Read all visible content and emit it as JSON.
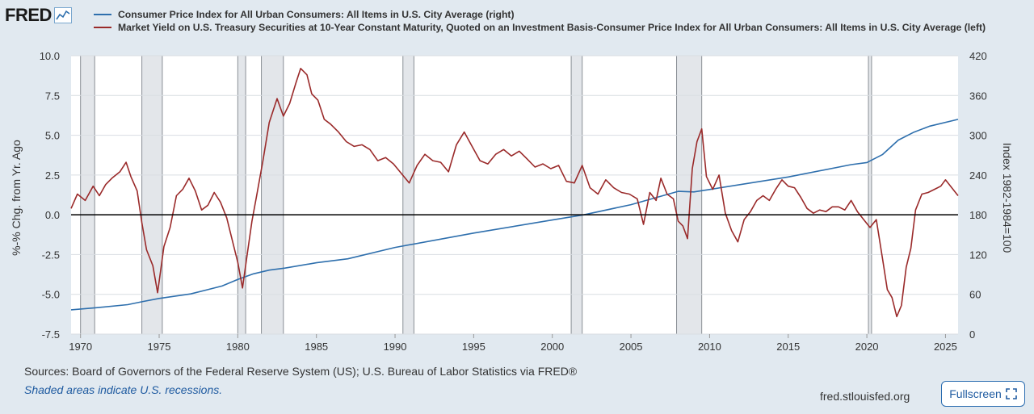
{
  "logo": {
    "text": "FRED",
    "icon": "chart-line-icon"
  },
  "legend": [
    {
      "label": "Consumer Price Index for All Urban Consumers: All Items in U.S. City Average (right)",
      "color": "#2e6fad"
    },
    {
      "label": "Market Yield on U.S. Treasury Securities at 10-Year Constant Maturity, Quoted on an Investment Basis-Consumer Price Index for All Urban Consumers: All Items in U.S. City Average (left)",
      "color": "#9a2a2a"
    }
  ],
  "footer": {
    "sources": "Sources: Board of Governors of the Federal Reserve System (US); U.S. Bureau of Labor Statistics via FRED®",
    "recession_note": "Shaded areas indicate U.S. recessions.",
    "site": "fred.stlouisfed.org",
    "fullscreen_label": "Fullscreen",
    "fullscreen_icon": "expand-icon"
  },
  "chart_data": {
    "type": "line",
    "ylabel_left": "%-% Chg. from Yr. Ago",
    "ylabel_right": "Index 1982-1984=100",
    "xlim": [
      1969.4,
      2025.8
    ],
    "ylim_left": [
      -7.5,
      10.0
    ],
    "ylim_right": [
      0,
      420
    ],
    "left_ticks": [
      "10.0",
      "7.5",
      "5.0",
      "2.5",
      "0.0",
      "-2.5",
      "-5.0",
      "-7.5"
    ],
    "right_ticks": [
      "420",
      "360",
      "300",
      "240",
      "180",
      "120",
      "60",
      "0"
    ],
    "x_ticks": [
      "1970",
      "1975",
      "1980",
      "1985",
      "1990",
      "1995",
      "2000",
      "2005",
      "2010",
      "2015",
      "2020",
      "2025"
    ],
    "grid": true,
    "zero_line": 0,
    "recessions": [
      [
        1970.0,
        1970.9
      ],
      [
        1973.9,
        1975.2
      ],
      [
        1980.0,
        1980.5
      ],
      [
        1981.5,
        1982.9
      ],
      [
        1990.5,
        1991.2
      ],
      [
        2001.2,
        2001.9
      ],
      [
        2007.9,
        2009.5
      ],
      [
        2020.1,
        2020.3
      ]
    ],
    "series": [
      {
        "name": "CPI (right)",
        "axis": "right",
        "color": "#2e6fad",
        "x": [
          1969.4,
          1971,
          1973,
          1974,
          1975,
          1977,
          1979,
          1980,
          1981,
          1982,
          1983,
          1985,
          1987,
          1990,
          1995,
          2000,
          2002,
          2005,
          2008,
          2009,
          2010,
          2015,
          2019,
          2020,
          2021,
          2022,
          2023,
          2024,
          2025.8
        ],
        "values": [
          36.7,
          39.8,
          44.4,
          49.3,
          53.8,
          60.6,
          72.6,
          82.4,
          90.9,
          96.5,
          99.6,
          107.6,
          113.6,
          130.7,
          152.4,
          172.2,
          179.9,
          195.3,
          215.3,
          214.5,
          218.1,
          237.0,
          255.7,
          258.8,
          271.0,
          292.7,
          304.7,
          313.7,
          324.0
        ]
      },
      {
        "name": "10Y Treasury minus CPI inflation (left)",
        "axis": "left",
        "color": "#9a2a2a",
        "x": [
          1969.4,
          1969.8,
          1970.3,
          1970.8,
          1971.2,
          1971.6,
          1972.0,
          1972.5,
          1972.9,
          1973.2,
          1973.6,
          1973.9,
          1974.2,
          1974.6,
          1974.9,
          1975.3,
          1975.7,
          1976.1,
          1976.5,
          1976.9,
          1977.3,
          1977.7,
          1978.1,
          1978.5,
          1978.9,
          1979.3,
          1979.7,
          1980.0,
          1980.3,
          1980.6,
          1980.9,
          1981.2,
          1981.6,
          1982.0,
          1982.5,
          1982.9,
          1983.3,
          1983.7,
          1984.0,
          1984.4,
          1984.7,
          1985.1,
          1985.5,
          1985.9,
          1986.4,
          1986.9,
          1987.4,
          1987.9,
          1988.4,
          1988.9,
          1989.4,
          1989.9,
          1990.4,
          1990.9,
          1991.4,
          1991.9,
          1992.4,
          1992.9,
          1993.4,
          1993.9,
          1994.4,
          1994.9,
          1995.4,
          1995.9,
          1996.4,
          1996.9,
          1997.4,
          1997.9,
          1998.4,
          1998.9,
          1999.4,
          1999.9,
          2000.4,
          2000.9,
          2001.4,
          2001.9,
          2002.4,
          2002.9,
          2003.4,
          2003.9,
          2004.4,
          2004.9,
          2005.4,
          2005.8,
          2006.2,
          2006.6,
          2006.9,
          2007.3,
          2007.7,
          2008.0,
          2008.3,
          2008.6,
          2008.9,
          2009.2,
          2009.5,
          2009.8,
          2010.2,
          2010.6,
          2011.0,
          2011.4,
          2011.8,
          2012.2,
          2012.6,
          2013.0,
          2013.4,
          2013.8,
          2014.2,
          2014.6,
          2015.0,
          2015.4,
          2015.8,
          2016.2,
          2016.6,
          2017.0,
          2017.4,
          2017.8,
          2018.2,
          2018.6,
          2019.0,
          2019.4,
          2019.8,
          2020.2,
          2020.6,
          2021.0,
          2021.3,
          2021.6,
          2021.9,
          2022.2,
          2022.5,
          2022.8,
          2023.1,
          2023.5,
          2023.9,
          2024.3,
          2024.7,
          2025.0,
          2025.4,
          2025.8
        ],
        "values": [
          0.4,
          1.3,
          0.9,
          1.8,
          1.2,
          1.9,
          2.3,
          2.7,
          3.3,
          2.4,
          1.5,
          -0.5,
          -2.2,
          -3.2,
          -4.9,
          -2.0,
          -0.8,
          1.2,
          1.6,
          2.3,
          1.5,
          0.3,
          0.6,
          1.4,
          0.8,
          -0.2,
          -1.8,
          -3.0,
          -4.6,
          -2.5,
          -0.4,
          1.2,
          3.4,
          5.8,
          7.3,
          6.2,
          7.0,
          8.3,
          9.2,
          8.8,
          7.6,
          7.2,
          6.0,
          5.7,
          5.2,
          4.6,
          4.3,
          4.4,
          4.1,
          3.4,
          3.6,
          3.2,
          2.6,
          2.0,
          3.1,
          3.8,
          3.4,
          3.3,
          2.7,
          4.4,
          5.2,
          4.3,
          3.4,
          3.2,
          3.8,
          4.1,
          3.7,
          4.0,
          3.5,
          3.0,
          3.2,
          2.9,
          3.1,
          2.1,
          2.0,
          3.1,
          1.7,
          1.3,
          2.2,
          1.7,
          1.4,
          1.3,
          1.0,
          -0.6,
          1.4,
          0.9,
          2.3,
          1.3,
          1.0,
          -0.4,
          -0.7,
          -1.5,
          2.9,
          4.6,
          5.4,
          2.4,
          1.6,
          2.5,
          0.1,
          -1.0,
          -1.7,
          -0.3,
          0.2,
          0.9,
          1.2,
          0.9,
          1.6,
          2.2,
          1.8,
          1.7,
          1.1,
          0.4,
          0.1,
          0.3,
          0.2,
          0.5,
          0.5,
          0.3,
          0.9,
          0.2,
          -0.3,
          -0.8,
          -0.3,
          -2.8,
          -4.7,
          -5.2,
          -6.4,
          -5.7,
          -3.3,
          -2.1,
          0.3,
          1.3,
          1.4,
          1.6,
          1.8,
          2.2,
          1.7,
          1.2
        ]
      }
    ]
  }
}
